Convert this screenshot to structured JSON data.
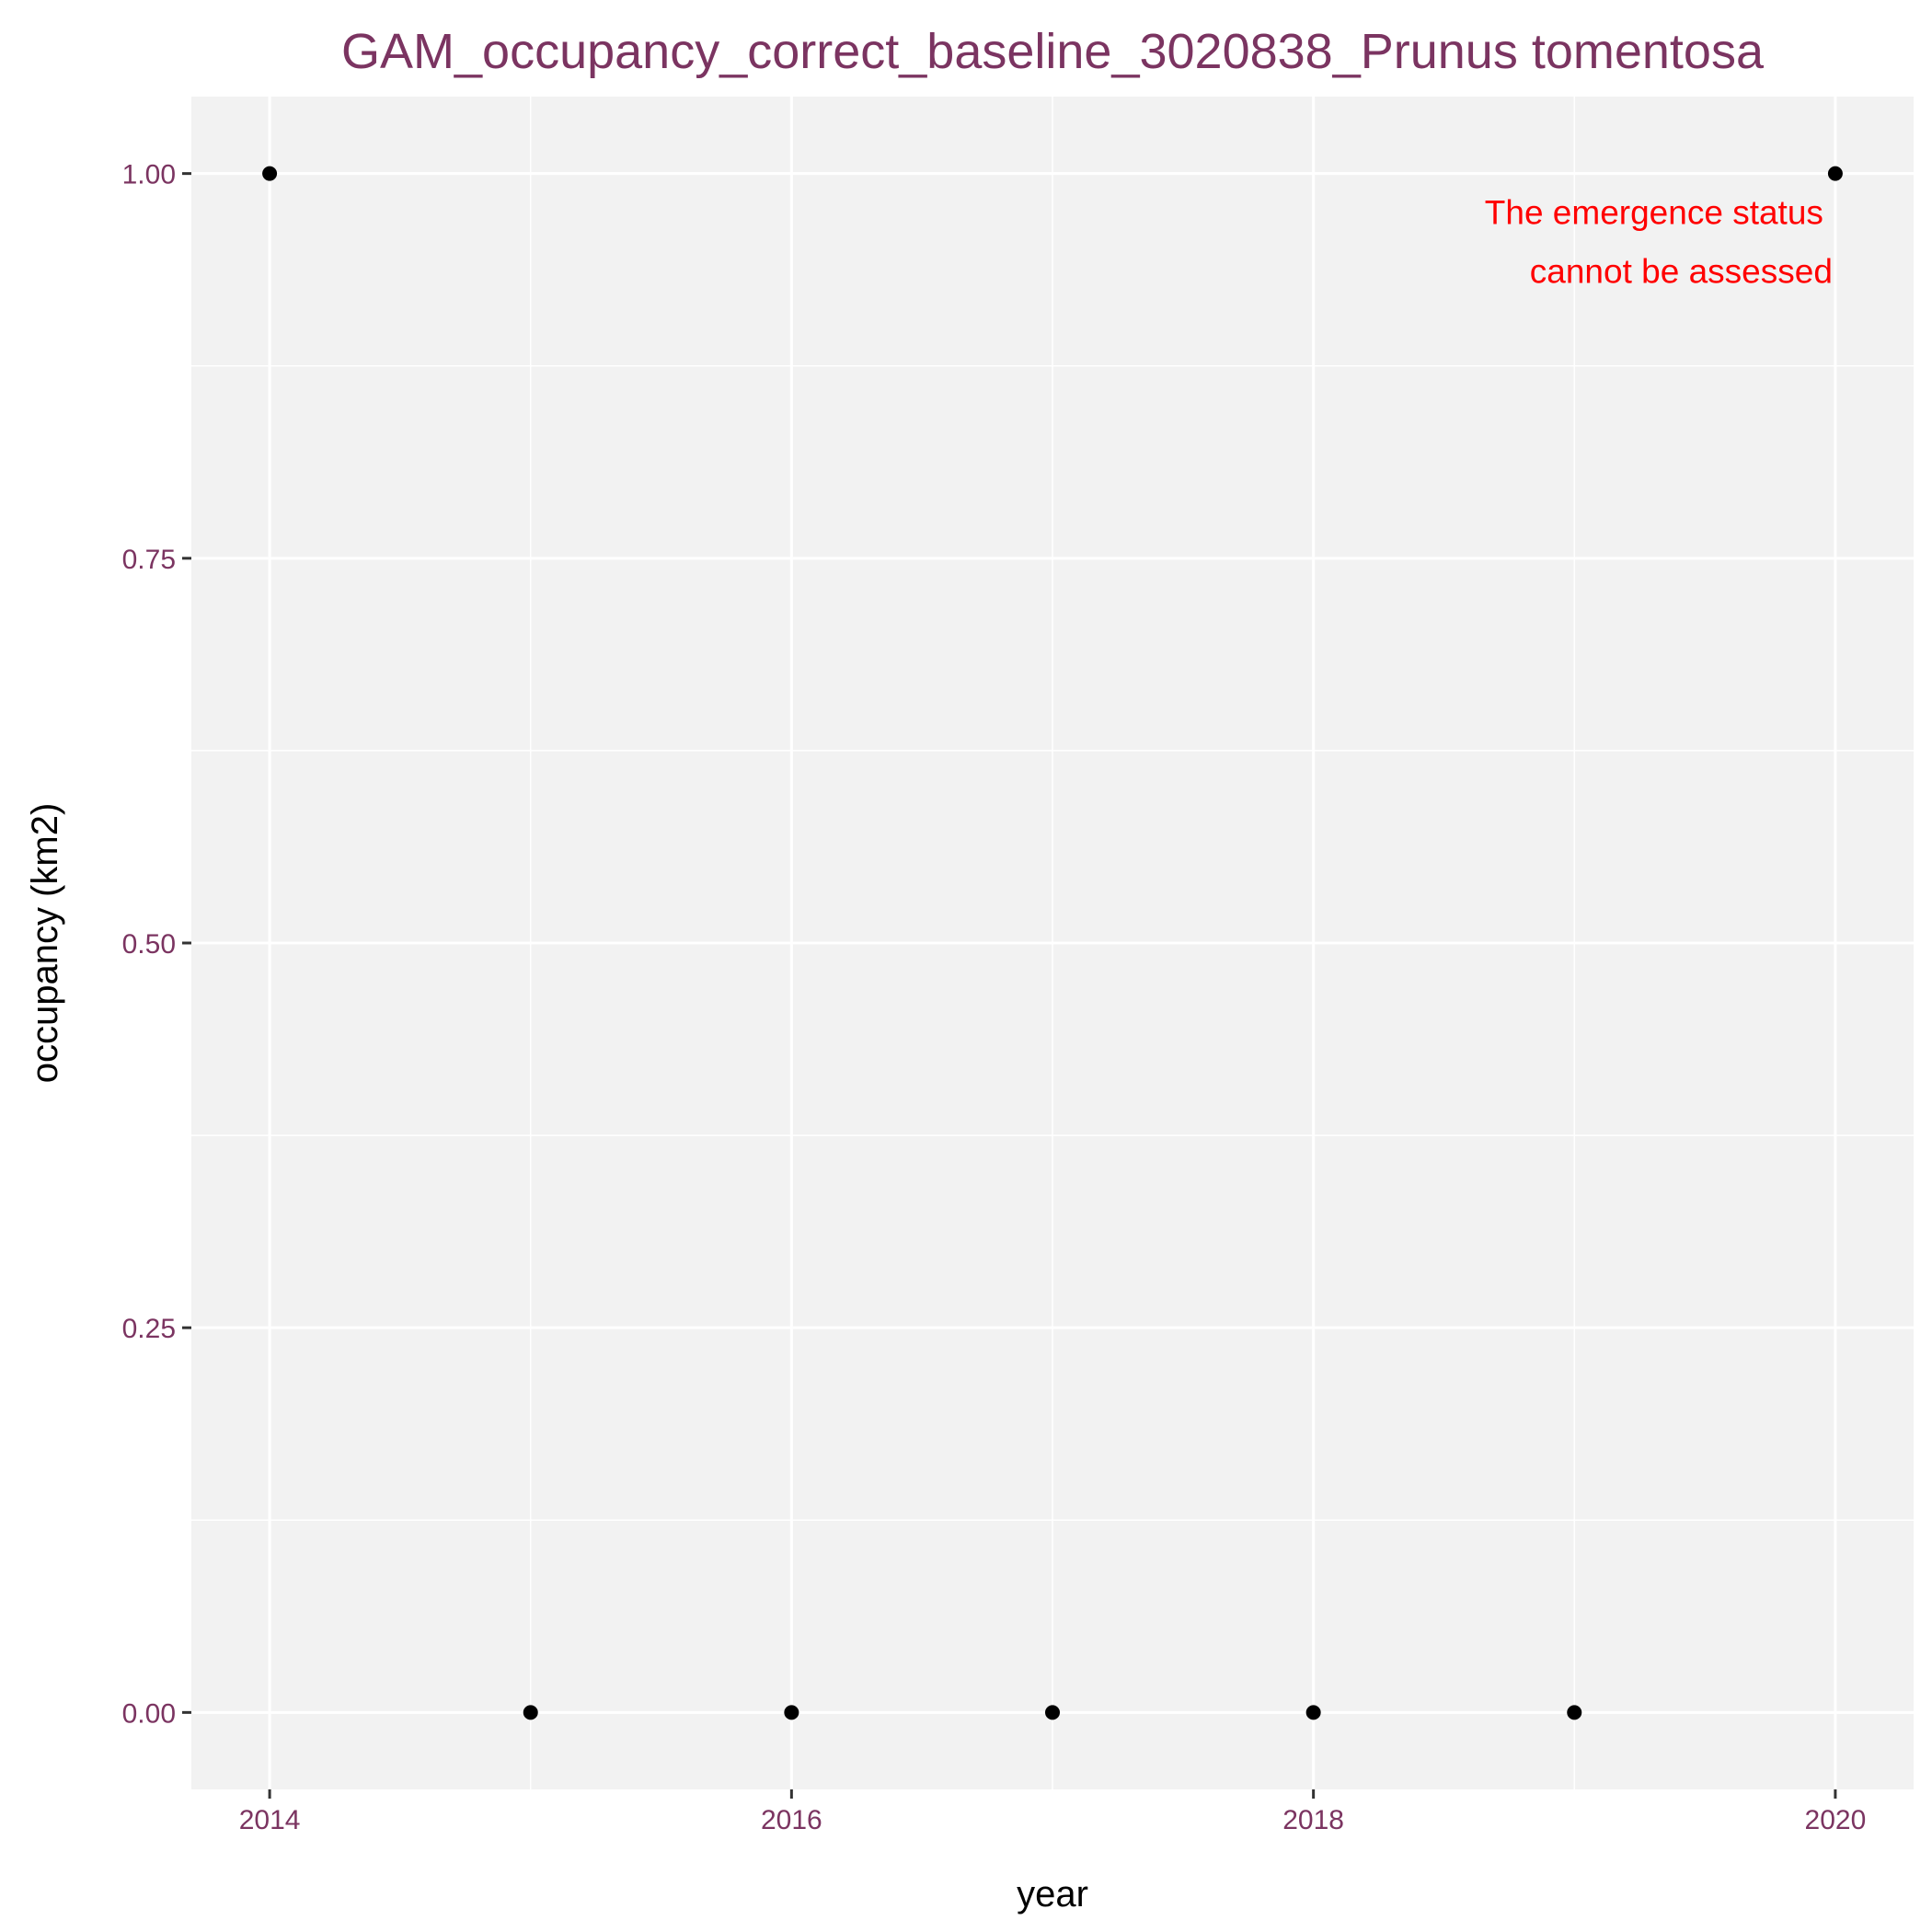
{
  "chart_data": {
    "type": "scatter",
    "title": "GAM_occupancy_correct_baseline_3020838_Prunus tomentosa",
    "xlabel": "year",
    "ylabel": "occupancy (km2)",
    "x": [
      2014,
      2015,
      2016,
      2017,
      2018,
      2019,
      2020
    ],
    "y": [
      1,
      0,
      0,
      0,
      0,
      0,
      1
    ],
    "xlim": [
      2013.7,
      2020.3
    ],
    "ylim": [
      -0.05,
      1.05
    ],
    "xticks": [
      2014,
      2016,
      2018,
      2020
    ],
    "xtick_labels": [
      "2014",
      "2016",
      "2018",
      "2020"
    ],
    "yticks": [
      0,
      0.25,
      0.5,
      0.75,
      1
    ],
    "ytick_labels": [
      "0.00",
      "0.25",
      "0.50",
      "0.75",
      "1.00"
    ],
    "grid": true,
    "annotation": {
      "lines": [
        "The emergence status",
        "cannot be assessed"
      ],
      "x": 2020,
      "y": 0.96
    },
    "colors": {
      "panel_background": "#f2f2f2",
      "grid": "#ffffff",
      "points": "#000000",
      "title": "#7b3461",
      "tick_labels": "#7b3461",
      "annotation": "#ff0000"
    }
  }
}
